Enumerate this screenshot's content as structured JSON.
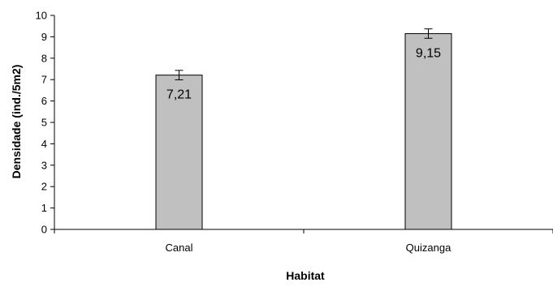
{
  "chart_data": {
    "type": "bar",
    "title": "",
    "xlabel": "Habitat",
    "ylabel": "Densidade (ind./5m2)",
    "categories": [
      "Canal",
      "Quizanga"
    ],
    "values": [
      7.21,
      9.15
    ],
    "value_labels": [
      "7,21",
      "9,15"
    ],
    "error": [
      0.22,
      0.22
    ],
    "ylim": [
      0,
      10
    ],
    "yticks": [
      0,
      1,
      2,
      3,
      4,
      5,
      6,
      7,
      8,
      9,
      10
    ],
    "ytick_labels": [
      "0",
      "1",
      "2",
      "3",
      "4",
      "5",
      "6",
      "7",
      "8",
      "9",
      "10"
    ],
    "grid": false,
    "legend": "none",
    "colors": {
      "bar_fill": "#c0c0c0",
      "bar_stroke": "#000000",
      "axis": "#000000"
    }
  }
}
